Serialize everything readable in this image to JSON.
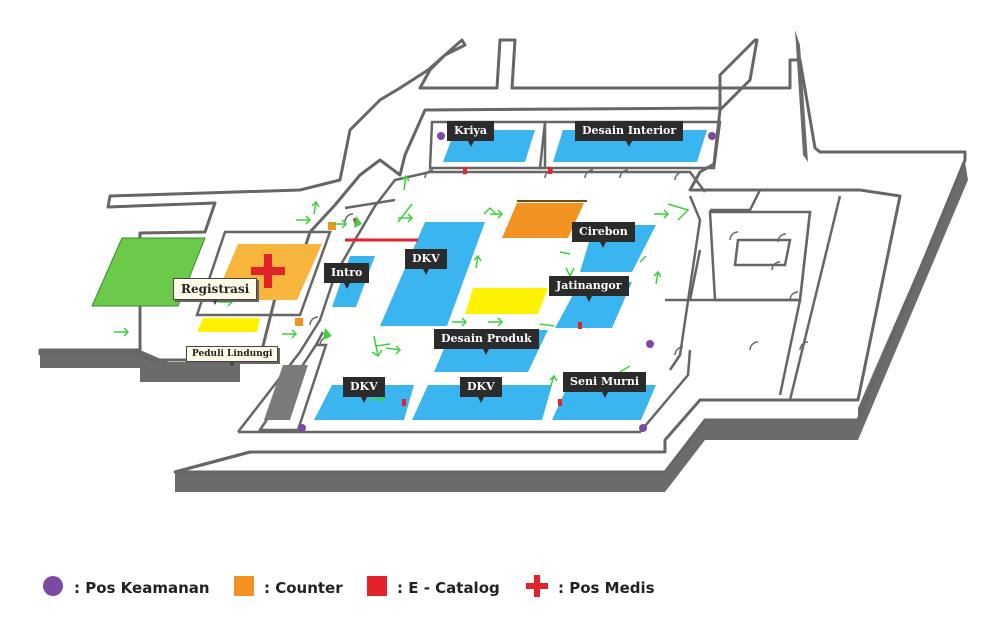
{
  "labels": {
    "kriya": "Kriya",
    "desain_interior": "Desain Interior",
    "cirebon": "Cirebon",
    "intro": "Intro",
    "dkv_center": "DKV",
    "jatinangor": "Jatinangor",
    "desain_produk": "Desain Produk",
    "dkv_left": "DKV",
    "dkv_mid": "DKV",
    "seni_murni": "Seni Murni",
    "registrasi": "Registrasi",
    "peduli_lindungi": "Peduli Lindungi"
  },
  "legend": {
    "pos_keamanan": ": Pos Keamanan",
    "counter": ": Counter",
    "e_catalog": ": E - Catalog",
    "pos_medis": ": Pos Medis"
  },
  "colors": {
    "booth": "#3bb5f0",
    "counter": "#f29221",
    "e_catalog": "#e32229",
    "pos_keamanan": "#7b4aa3",
    "pos_medis": "#e32229",
    "garden": "#6cca4a",
    "highlight": "#fff200",
    "arrow": "#3bd13b"
  },
  "icons": {
    "pos_keamanan": "purple-circle-icon",
    "counter": "orange-square-icon",
    "e_catalog": "red-square-icon",
    "pos_medis": "red-cross-icon"
  }
}
